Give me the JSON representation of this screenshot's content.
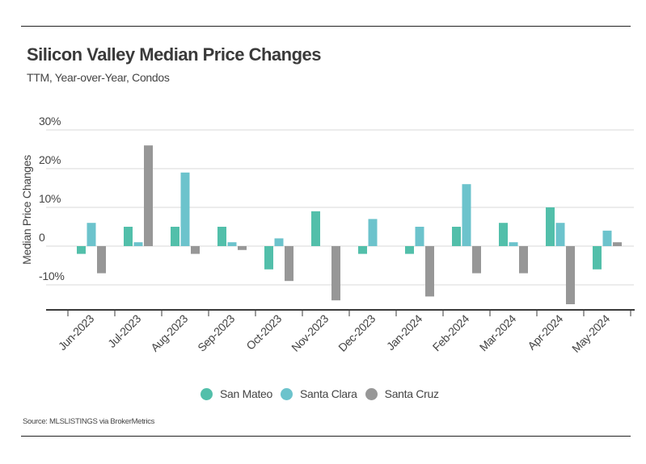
{
  "chart_data": {
    "type": "bar",
    "title": "Silicon Valley Median Price Changes",
    "subtitle": "TTM, Year-over-Year, Condos",
    "xlabel": "",
    "ylabel": "Median Price Changes",
    "ylim": [
      -16,
      30
    ],
    "yticks": [
      {
        "value": 30,
        "label": "30%"
      },
      {
        "value": 20,
        "label": "20%"
      },
      {
        "value": 10,
        "label": "10%"
      },
      {
        "value": 0,
        "label": "0"
      },
      {
        "value": -10,
        "label": "-10%"
      }
    ],
    "grid": true,
    "categories": [
      "Jun-2023",
      "Jul-2023",
      "Aug-2023",
      "Sep-2023",
      "Oct-2023",
      "Nov-2023",
      "Dec-2023",
      "Jan-2024",
      "Feb-2024",
      "Mar-2024",
      "Apr-2024",
      "May-2024"
    ],
    "series": [
      {
        "name": "San Mateo",
        "color": "#52bfaa",
        "values": [
          -2,
          5,
          5,
          5,
          -6,
          9,
          -2,
          -2,
          5,
          6,
          10,
          -6
        ]
      },
      {
        "name": "Santa Clara",
        "color": "#6cc3cc",
        "values": [
          6,
          1,
          19,
          1,
          2,
          null,
          7,
          5,
          16,
          1,
          6,
          4
        ]
      },
      {
        "name": "Santa Cruz",
        "color": "#979797",
        "values": [
          -7,
          26,
          -2,
          -1,
          -9,
          -14,
          null,
          -13,
          -7,
          -7,
          -15,
          1
        ]
      }
    ],
    "legend_position": "bottom-center",
    "source": "Source:  MLSLISTINGS via BrokerMetrics"
  }
}
